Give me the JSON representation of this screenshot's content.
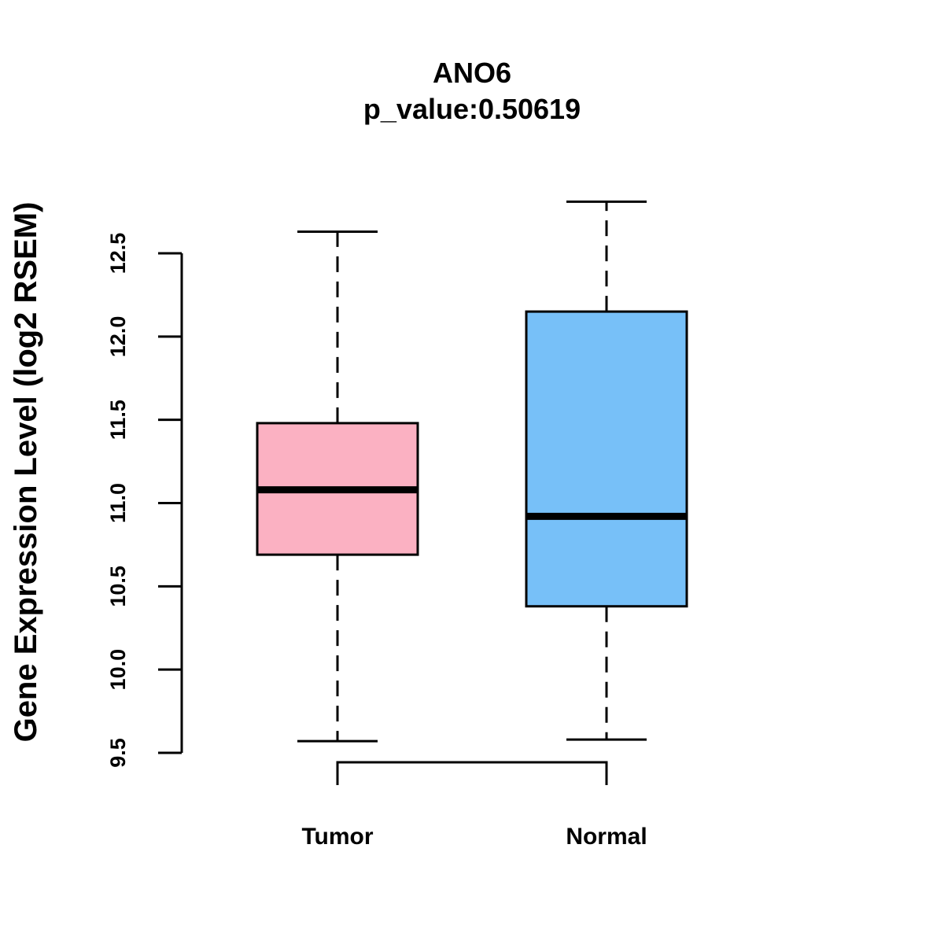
{
  "chart_data": {
    "type": "boxplot",
    "title": "ANO6",
    "subtitle": "p_value:0.50619",
    "xlabel": "",
    "ylabel": "Gene Expression Level (log2 RSEM)",
    "ylim": [
      9.5,
      12.5
    ],
    "yticks": [
      9.5,
      10.0,
      10.5,
      11.0,
      11.5,
      12.0,
      12.5
    ],
    "ytick_labels": [
      "9.5",
      "10.0",
      "10.5",
      "11.0",
      "11.5",
      "12.0",
      "12.5"
    ],
    "categories": [
      "Tumor",
      "Normal"
    ],
    "series": [
      {
        "name": "Tumor",
        "whisker_low": 9.57,
        "q1": 10.69,
        "median": 11.08,
        "q3": 11.48,
        "whisker_high": 12.63,
        "color": "#FBB1C2"
      },
      {
        "name": "Normal",
        "whisker_low": 9.58,
        "q1": 10.38,
        "median": 10.92,
        "q3": 12.15,
        "whisker_high": 12.81,
        "color": "#77C0F8"
      }
    ],
    "grid": false,
    "comparison_bracket": [
      "Tumor",
      "Normal"
    ]
  }
}
